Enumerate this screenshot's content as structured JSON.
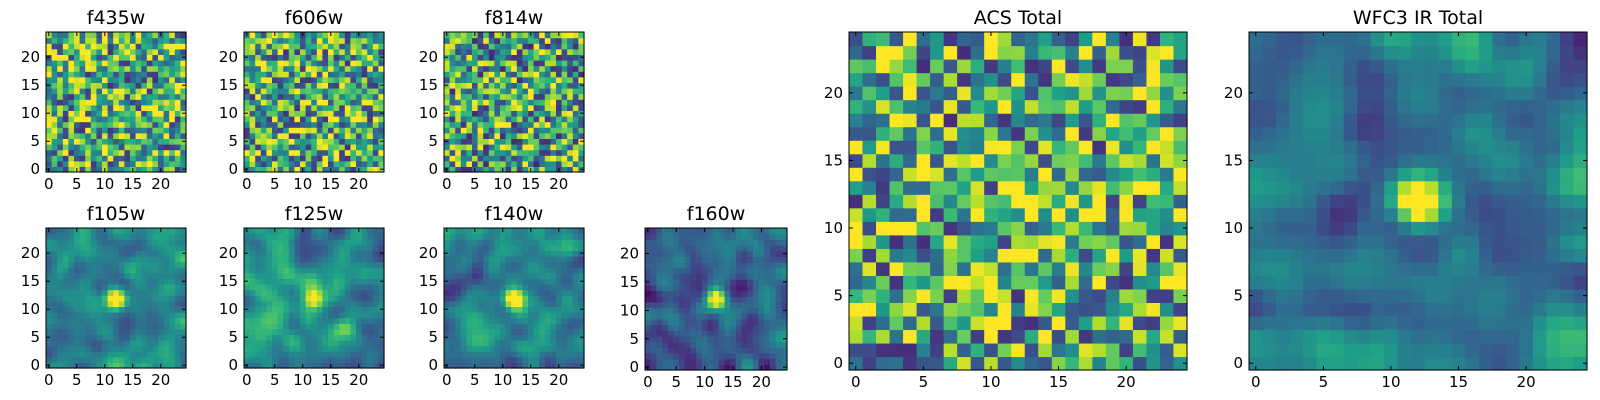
{
  "chart_data": [
    {
      "type": "heatmap",
      "title": "f435w",
      "pattern": "noise",
      "seed": 11,
      "brightness": 0.62,
      "source_strength": 0.05,
      "source_center": [
        13,
        12
      ],
      "x_ticks": [
        0,
        5,
        10,
        15,
        20
      ],
      "y_ticks": [
        0,
        5,
        10,
        15,
        20
      ],
      "xlim": [
        0,
        24
      ],
      "ylim": [
        0,
        24
      ]
    },
    {
      "type": "heatmap",
      "title": "f606w",
      "pattern": "noise",
      "seed": 23,
      "brightness": 0.62,
      "source_strength": 0.22,
      "source_center": [
        13,
        12
      ],
      "x_ticks": [
        0,
        5,
        10,
        15,
        20
      ],
      "y_ticks": [
        0,
        5,
        10,
        15,
        20
      ],
      "xlim": [
        0,
        24
      ],
      "ylim": [
        0,
        24
      ]
    },
    {
      "type": "heatmap",
      "title": "f814w",
      "pattern": "noise",
      "seed": 37,
      "brightness": 0.58,
      "source_strength": 0.4,
      "source_center": [
        13,
        12
      ],
      "x_ticks": [
        0,
        5,
        10,
        15,
        20
      ],
      "y_ticks": [
        0,
        5,
        10,
        15,
        20
      ],
      "xlim": [
        0,
        24
      ],
      "ylim": [
        0,
        24
      ]
    },
    {
      "type": "heatmap",
      "title": "f105w",
      "pattern": "smooth",
      "seed": 41,
      "brightness": 0.45,
      "source_strength": 0.7,
      "source_center": [
        12,
        12
      ],
      "x_ticks": [
        0,
        5,
        10,
        15,
        20
      ],
      "y_ticks": [
        0,
        5,
        10,
        15,
        20
      ],
      "xlim": [
        0,
        24
      ],
      "ylim": [
        0,
        24
      ]
    },
    {
      "type": "heatmap",
      "title": "f125w",
      "pattern": "smooth",
      "seed": 53,
      "brightness": 0.5,
      "source_strength": 0.6,
      "source_center": [
        12,
        12
      ],
      "x_ticks": [
        0,
        5,
        10,
        15,
        20
      ],
      "y_ticks": [
        0,
        5,
        10,
        15,
        20
      ],
      "xlim": [
        0,
        24
      ],
      "ylim": [
        0,
        24
      ]
    },
    {
      "type": "heatmap",
      "title": "f140w",
      "pattern": "smooth",
      "seed": 67,
      "brightness": 0.45,
      "source_strength": 0.7,
      "source_center": [
        12,
        12
      ],
      "x_ticks": [
        0,
        5,
        10,
        15,
        20
      ],
      "y_ticks": [
        0,
        5,
        10,
        15,
        20
      ],
      "xlim": [
        0,
        24
      ],
      "ylim": [
        0,
        24
      ]
    },
    {
      "type": "heatmap",
      "title": "f160w",
      "pattern": "smooth",
      "seed": 79,
      "brightness": 0.32,
      "source_strength": 0.85,
      "source_center": [
        12,
        12
      ],
      "x_ticks": [
        0,
        5,
        10,
        15,
        20
      ],
      "y_ticks": [
        0,
        5,
        10,
        15,
        20
      ],
      "xlim": [
        0,
        24
      ],
      "ylim": [
        0,
        24
      ]
    },
    {
      "type": "heatmap",
      "title": "ACS Total",
      "pattern": "noise",
      "seed": 97,
      "brightness": 0.6,
      "source_strength": 0.45,
      "source_center": [
        13,
        12
      ],
      "x_ticks": [
        0,
        5,
        10,
        15,
        20
      ],
      "y_ticks": [
        0,
        5,
        10,
        15,
        20
      ],
      "xlim": [
        0,
        24
      ],
      "ylim": [
        0,
        24
      ]
    },
    {
      "type": "heatmap",
      "title": "WFC3 IR Total",
      "pattern": "smooth",
      "seed": 103,
      "brightness": 0.35,
      "source_strength": 0.85,
      "source_center": [
        12,
        12
      ],
      "x_ticks": [
        0,
        5,
        10,
        15,
        20
      ],
      "y_ticks": [
        0,
        5,
        10,
        15,
        20
      ],
      "xlim": [
        0,
        24
      ],
      "ylim": [
        0,
        24
      ]
    }
  ]
}
